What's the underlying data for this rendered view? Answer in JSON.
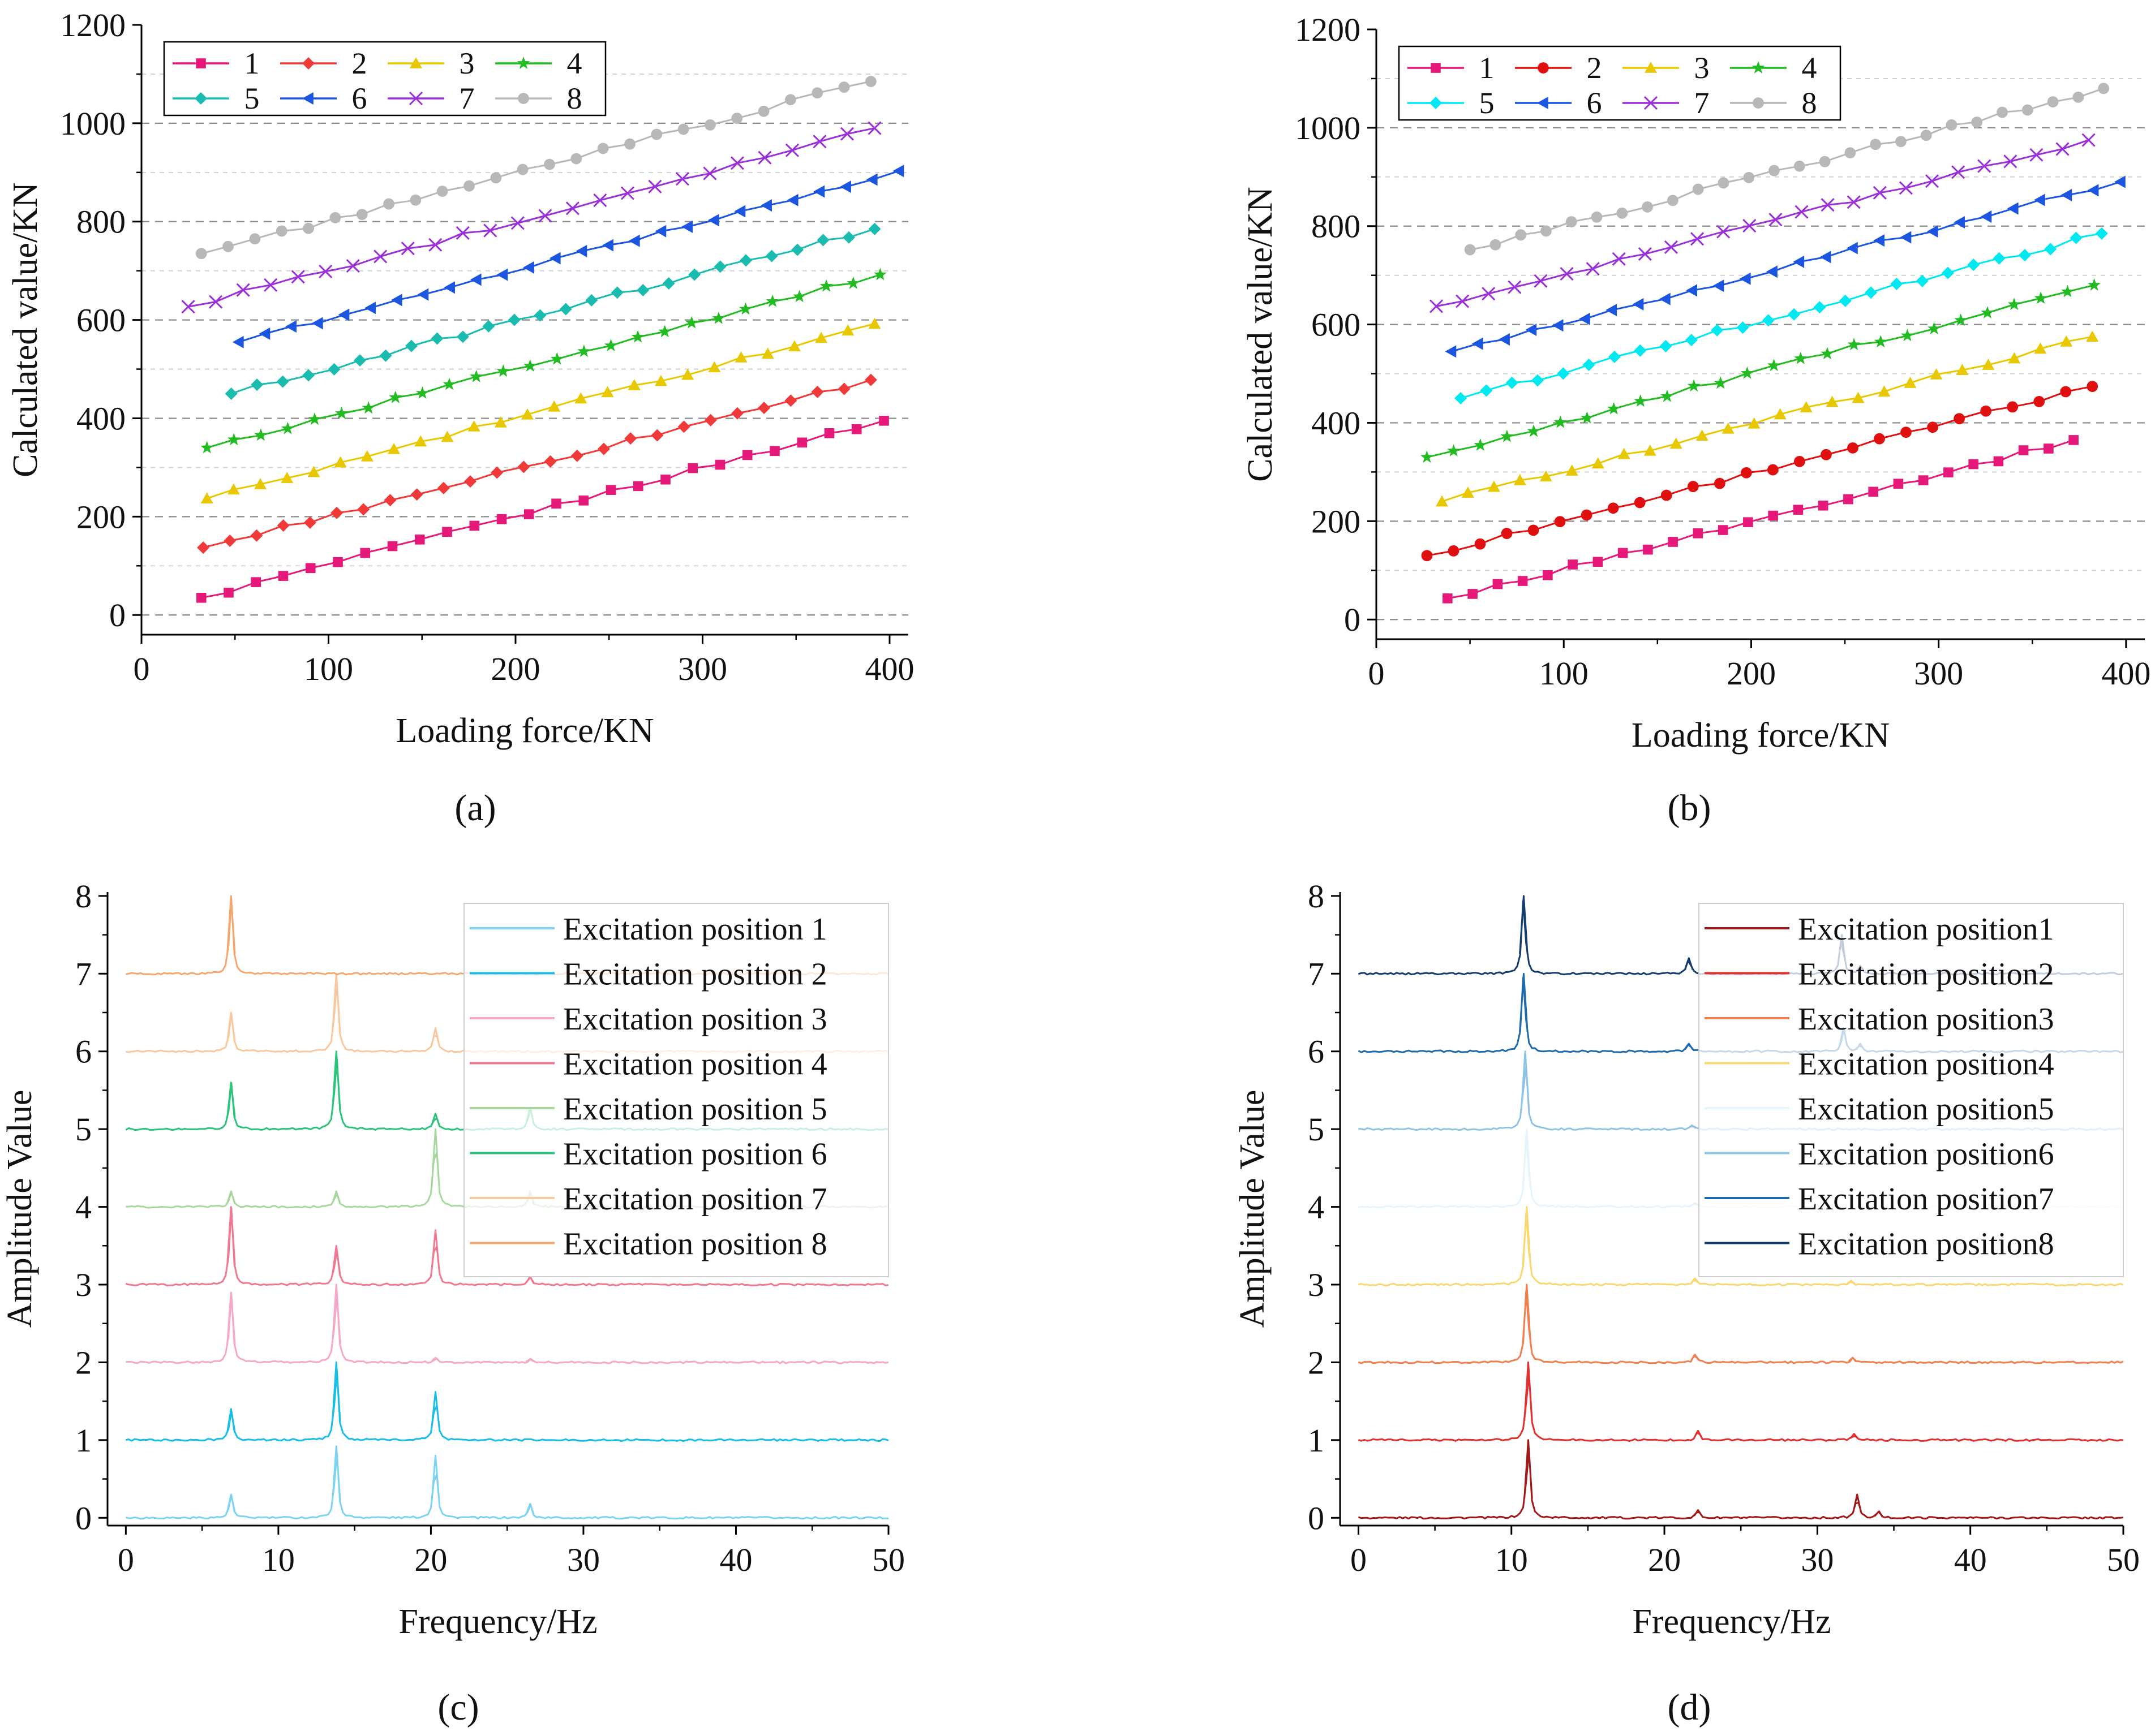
{
  "chart_data": [
    {
      "panel": "(a)",
      "type": "line",
      "xlabel": "Loading force/KN",
      "ylabel": "Calculated value/KN",
      "xlim": [
        0,
        410
      ],
      "ylim": [
        -40,
        1200
      ],
      "xticks": [
        0,
        100,
        200,
        300,
        400
      ],
      "yticks": [
        0,
        200,
        400,
        600,
        800,
        1000,
        1200
      ],
      "grid_y": [
        100,
        200,
        300,
        400,
        500,
        600,
        700,
        800,
        900,
        1000,
        1100
      ],
      "legend": "top-left, 2 rows x 4 columns",
      "series": [
        {
          "name": "1",
          "color": "#e6197a",
          "marker": "square",
          "x_start": 32,
          "x_end": 397,
          "y_start": 35,
          "y_end": 395
        },
        {
          "name": "2",
          "color": "#f03a3a",
          "marker": "diamond",
          "x_start": 33,
          "x_end": 390,
          "y_start": 137,
          "y_end": 478
        },
        {
          "name": "3",
          "color": "#e8c800",
          "marker": "triangle-up",
          "x_start": 35,
          "x_end": 392,
          "y_start": 237,
          "y_end": 592
        },
        {
          "name": "4",
          "color": "#22bb22",
          "marker": "star",
          "x_start": 35,
          "x_end": 395,
          "y_start": 340,
          "y_end": 692
        },
        {
          "name": "5",
          "color": "#1abcb0",
          "marker": "diamond",
          "x_start": 48,
          "x_end": 392,
          "y_start": 450,
          "y_end": 785
        },
        {
          "name": "6",
          "color": "#1b55e0",
          "marker": "triangle-left",
          "x_start": 52,
          "x_end": 405,
          "y_start": 555,
          "y_end": 903
        },
        {
          "name": "7",
          "color": "#9b30d8",
          "marker": "x",
          "x_start": 25,
          "x_end": 392,
          "y_start": 627,
          "y_end": 990
        },
        {
          "name": "8",
          "color": "#b8b8b8",
          "marker": "circle",
          "x_start": 32,
          "x_end": 390,
          "y_start": 735,
          "y_end": 1085
        }
      ]
    },
    {
      "panel": "(b)",
      "type": "line",
      "xlabel": "Loading force/KN",
      "ylabel": "Calculated value/KN",
      "xlim": [
        0,
        410
      ],
      "ylim": [
        -40,
        1200
      ],
      "xticks": [
        0,
        100,
        200,
        300,
        400
      ],
      "yticks": [
        0,
        200,
        400,
        600,
        800,
        1000,
        1200
      ],
      "grid_y": [
        100,
        200,
        300,
        400,
        500,
        600,
        700,
        800,
        900,
        1000,
        1100
      ],
      "legend": "top-left, 2 rows x 4 columns",
      "series": [
        {
          "name": "1",
          "color": "#e6197a",
          "marker": "square",
          "x_start": 38,
          "x_end": 372,
          "y_start": 43,
          "y_end": 365
        },
        {
          "name": "2",
          "color": "#e01010",
          "marker": "circle",
          "x_start": 27,
          "x_end": 382,
          "y_start": 130,
          "y_end": 474
        },
        {
          "name": "3",
          "color": "#e8c800",
          "marker": "triangle-up",
          "x_start": 35,
          "x_end": 382,
          "y_start": 240,
          "y_end": 575
        },
        {
          "name": "4",
          "color": "#22bb22",
          "marker": "star",
          "x_start": 27,
          "x_end": 383,
          "y_start": 330,
          "y_end": 680
        },
        {
          "name": "5",
          "color": "#00e8f0",
          "marker": "diamond",
          "x_start": 45,
          "x_end": 387,
          "y_start": 450,
          "y_end": 785
        },
        {
          "name": "6",
          "color": "#1b55e0",
          "marker": "triangle-left",
          "x_start": 40,
          "x_end": 397,
          "y_start": 545,
          "y_end": 890
        },
        {
          "name": "7",
          "color": "#9b30d8",
          "marker": "x",
          "x_start": 32,
          "x_end": 380,
          "y_start": 637,
          "y_end": 975
        },
        {
          "name": "8",
          "color": "#b8b8b8",
          "marker": "circle",
          "x_start": 50,
          "x_end": 388,
          "y_start": 752,
          "y_end": 1080
        }
      ]
    },
    {
      "panel": "(c)",
      "type": "line",
      "xlabel": "Frequency/Hz",
      "ylabel": "Amplitude Value",
      "xlim": [
        -1.2,
        50
      ],
      "ylim": [
        -0.1,
        8.05
      ],
      "xticks": [
        0,
        10,
        20,
        30,
        40,
        50
      ],
      "yticks": [
        0,
        1,
        2,
        3,
        4,
        5,
        6,
        7,
        8
      ],
      "legend": "top-right",
      "series": [
        {
          "name": "Excitation position 1",
          "color": "#7dd3f0",
          "baseline": 0,
          "peaks": [
            [
              6.9,
              0.3
            ],
            [
              13.8,
              0.92
            ],
            [
              20.3,
              0.8
            ],
            [
              26.5,
              0.18
            ]
          ]
        },
        {
          "name": "Excitation position 2",
          "color": "#18bde8",
          "baseline": 1,
          "peaks": [
            [
              6.9,
              0.4
            ],
            [
              13.8,
              1.0
            ],
            [
              20.3,
              0.62
            ]
          ]
        },
        {
          "name": "Excitation position 3",
          "color": "#f5a8c8",
          "baseline": 2,
          "peaks": [
            [
              6.9,
              0.9
            ],
            [
              13.8,
              1.0
            ],
            [
              20.3,
              0.06
            ],
            [
              26.5,
              0.04
            ]
          ]
        },
        {
          "name": "Excitation position 4",
          "color": "#f07890",
          "baseline": 3,
          "peaks": [
            [
              6.9,
              1.0
            ],
            [
              13.8,
              0.5
            ],
            [
              20.3,
              0.7
            ],
            [
              26.5,
              0.1
            ]
          ]
        },
        {
          "name": "Excitation position 5",
          "color": "#a8d8a0",
          "baseline": 4,
          "peaks": [
            [
              6.9,
              0.2
            ],
            [
              13.8,
              0.2
            ],
            [
              20.3,
              1.0
            ],
            [
              26.5,
              0.2
            ]
          ]
        },
        {
          "name": "Excitation position 6",
          "color": "#2cc47a",
          "baseline": 5,
          "peaks": [
            [
              6.9,
              0.6
            ],
            [
              13.8,
              1.0
            ],
            [
              20.3,
              0.2
            ],
            [
              26.5,
              0.28
            ]
          ]
        },
        {
          "name": "Excitation position 7",
          "color": "#f8c8a0",
          "baseline": 6,
          "peaks": [
            [
              6.9,
              0.5
            ],
            [
              13.8,
              1.0
            ],
            [
              20.3,
              0.3
            ]
          ]
        },
        {
          "name": "Excitation position 8",
          "color": "#f4a870",
          "baseline": 7,
          "peaks": [
            [
              6.9,
              1.0
            ]
          ]
        }
      ]
    },
    {
      "panel": "(d)",
      "type": "line",
      "xlabel": "Frequency/Hz",
      "ylabel": "Amplitude Value",
      "xlim": [
        -1.2,
        50
      ],
      "ylim": [
        -0.1,
        8.05
      ],
      "xticks": [
        0,
        10,
        20,
        30,
        40,
        50
      ],
      "yticks": [
        0,
        1,
        2,
        3,
        4,
        5,
        6,
        7,
        8
      ],
      "legend": "top-right",
      "series": [
        {
          "name": "Excitation position1",
          "color": "#a01818",
          "baseline": 0,
          "peaks": [
            [
              11.1,
              1.0
            ],
            [
              22.2,
              0.1
            ],
            [
              32.6,
              0.3
            ],
            [
              34.0,
              0.08
            ]
          ]
        },
        {
          "name": "Excitation position2",
          "color": "#e03030",
          "baseline": 1,
          "peaks": [
            [
              11.1,
              1.0
            ],
            [
              22.2,
              0.12
            ],
            [
              32.4,
              0.08
            ]
          ]
        },
        {
          "name": "Excitation position3",
          "color": "#f08050",
          "baseline": 2,
          "peaks": [
            [
              11.0,
              1.0
            ],
            [
              22.0,
              0.1
            ],
            [
              32.3,
              0.06
            ]
          ]
        },
        {
          "name": "Excitation position4",
          "color": "#f8d870",
          "baseline": 3,
          "peaks": [
            [
              11.0,
              1.0
            ],
            [
              22.0,
              0.08
            ],
            [
              32.2,
              0.05
            ]
          ]
        },
        {
          "name": "Excitation position5",
          "color": "#e6f4fb",
          "baseline": 4,
          "peaks": [
            [
              11.0,
              1.0
            ],
            [
              22.0,
              0.05
            ]
          ]
        },
        {
          "name": "Excitation position6",
          "color": "#90c4e4",
          "baseline": 5,
          "peaks": [
            [
              10.9,
              1.0
            ],
            [
              21.8,
              0.05
            ]
          ]
        },
        {
          "name": "Excitation position7",
          "color": "#1e6aaa",
          "baseline": 6,
          "peaks": [
            [
              10.8,
              1.0
            ],
            [
              21.6,
              0.1
            ],
            [
              31.7,
              0.3
            ],
            [
              32.8,
              0.1
            ]
          ]
        },
        {
          "name": "Excitation position8",
          "color": "#143c6e",
          "baseline": 7,
          "peaks": [
            [
              10.8,
              1.0
            ],
            [
              21.6,
              0.2
            ],
            [
              31.6,
              0.5
            ],
            [
              32.8,
              0.1
            ]
          ]
        }
      ]
    }
  ]
}
